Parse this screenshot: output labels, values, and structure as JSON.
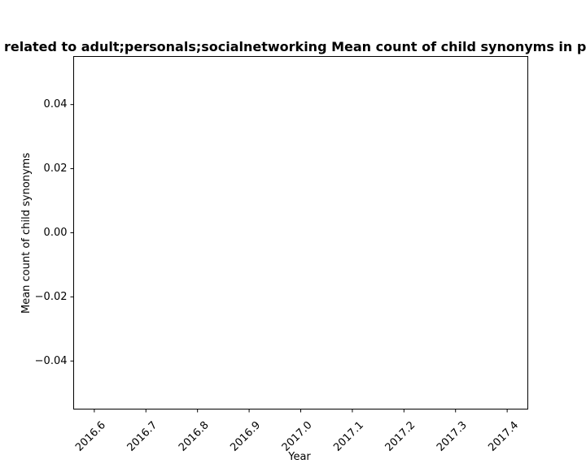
{
  "chart_data": {
    "type": "line",
    "title": "related to adult;personals;socialnetworking Mean count of child synonyms in p",
    "xlabel": "Year",
    "ylabel": "Mean count of child synonyms",
    "x_ticks": [
      "2016.6",
      "2016.7",
      "2016.8",
      "2016.9",
      "2017.0",
      "2017.1",
      "2017.2",
      "2017.3",
      "2017.4"
    ],
    "x_tick_values": [
      2016.6,
      2016.7,
      2016.8,
      2016.9,
      2017.0,
      2017.1,
      2017.2,
      2017.3,
      2017.4
    ],
    "y_ticks": [
      "0.04",
      "0.02",
      "0.00",
      "−0.02",
      "−0.04"
    ],
    "y_tick_values": [
      0.04,
      0.02,
      0.0,
      -0.02,
      -0.04
    ],
    "xlim": [
      2016.56,
      2017.44
    ],
    "ylim": [
      -0.055,
      0.055
    ],
    "series": [],
    "grid": false,
    "legend": "none",
    "x_tick_rotation": 45
  }
}
